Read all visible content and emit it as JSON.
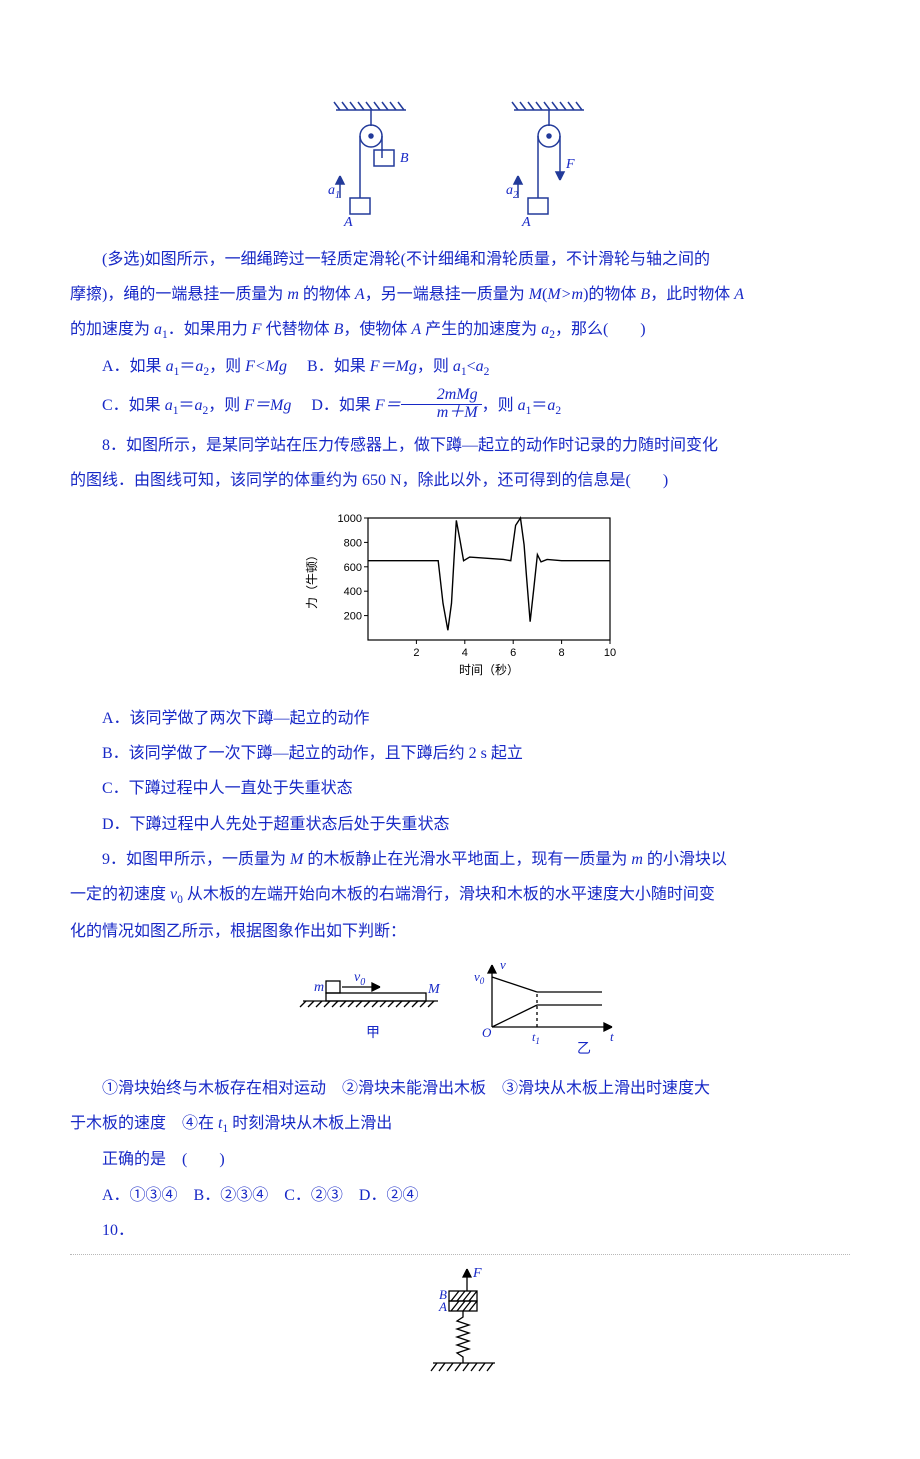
{
  "colors": {
    "ink": "#1728c6",
    "figure_stroke": "#223a9a",
    "figure_stroke2": "#000000",
    "chart_axis": "#000000",
    "chart_line": "#000000",
    "sep": "#b8b8b8",
    "bg": "#ffffff"
  },
  "typography": {
    "body_fontsize_pt": 12,
    "line_height": 2.2,
    "font_family": "SimSun / STSong",
    "italic_family": "Times New Roman"
  },
  "fig7": {
    "left": {
      "a_arrow_label": "a",
      "a_sub": "1",
      "block_A": "A",
      "block_B": "B"
    },
    "right": {
      "a_arrow_label": "a",
      "a_sub": "2",
      "block_A": "A",
      "force_label": "F"
    },
    "pulley_radius": 10,
    "hatch_width": 70
  },
  "q7": {
    "intro1": "(多选)如图所示，一细绳跨过一轻质定滑轮(不计细绳和滑轮质量，不计滑轮与轴之间的",
    "intro2": "摩擦)，绳的一端悬挂一质量为 ",
    "intro2_m": "m",
    "intro2b": " 的物体 ",
    "intro2_A": "A",
    "intro2c": "，另一端悬挂一质量为 ",
    "intro2_M": "M",
    "intro2_paren_open": "(",
    "intro2_rel": "M>m",
    "intro2_paren_close": ")",
    "intro2d": "的物体 ",
    "intro2_B": "B",
    "intro2e": "，此时物体 ",
    "intro2_A2": "A",
    "intro3a": "的加速度为 ",
    "intro3_a1": "a",
    "intro3_a1_sub": "1",
    "intro3b": "．如果用力 ",
    "intro3_F": "F",
    "intro3c": " 代替物体 ",
    "intro3_B": "B",
    "intro3d": "，使物体 ",
    "intro3_A": "A",
    "intro3e": " 产生的加速度为 ",
    "intro3_a2": "a",
    "intro3_a2_sub": "2",
    "intro3f": "，那么(　　)",
    "optA_pre": "A．如果 ",
    "optA_a1": "a",
    "optA_a1s": "1",
    "optA_eq": "＝",
    "optA_a2": "a",
    "optA_a2s": "2",
    "optA_mid": "，则 ",
    "optA_rel": "F<Mg",
    "optB_pre": "　B．如果 ",
    "optB_rel": "F＝Mg",
    "optB_mid": "，则 ",
    "optB_a1": "a",
    "optB_a1s": "1",
    "optB_lt": "<",
    "optB_a2": "a",
    "optB_a2s": "2",
    "optC_pre": "C．如果 ",
    "optC_a1": "a",
    "optC_a1s": "1",
    "optC_eq": "＝",
    "optC_a2": "a",
    "optC_a2s": "2",
    "optC_mid": "，则 ",
    "optC_rel": "F＝Mg",
    "optD_pre": "　D．如果 ",
    "optD_F": "F＝",
    "optD_num": "2mMg",
    "optD_den": "m＋M",
    "optD_mid": "，则 ",
    "optD_a1": "a",
    "optD_a1s": "1",
    "optD_eq": "＝",
    "optD_a2": "a",
    "optD_a2s": "2"
  },
  "q8": {
    "line1": "8．如图所示，是某同学站在压力传感器上，做下蹲—起立的动作时记录的力随时间变化",
    "line2": "的图线．由图线可知，该同学的体重约为 650 N，除此以外，还可得到的信息是(　　)",
    "chart": {
      "type": "line",
      "xlabel": "时间（秒）",
      "ylabel": "力（牛顿）",
      "xlim": [
        0,
        10
      ],
      "ylim": [
        0,
        1000
      ],
      "xtick_step": 2,
      "ytick_step": 200,
      "xticks": [
        2,
        4,
        6,
        8,
        10
      ],
      "yticks": [
        200,
        400,
        600,
        800,
        1000
      ],
      "axis_color": "#000000",
      "line_color": "#000000",
      "line_width": 1.4,
      "label_fontsize": 12,
      "tick_fontsize": 11,
      "background_color": "#ffffff",
      "data": [
        [
          0.0,
          650
        ],
        [
          2.9,
          650
        ],
        [
          3.1,
          300
        ],
        [
          3.3,
          80
        ],
        [
          3.45,
          300
        ],
        [
          3.55,
          650
        ],
        [
          3.65,
          980
        ],
        [
          3.8,
          820
        ],
        [
          3.95,
          650
        ],
        [
          4.2,
          680
        ],
        [
          5.6,
          660
        ],
        [
          5.9,
          650
        ],
        [
          6.1,
          940
        ],
        [
          6.3,
          1000
        ],
        [
          6.45,
          780
        ],
        [
          6.55,
          520
        ],
        [
          6.7,
          150
        ],
        [
          6.85,
          420
        ],
        [
          7.0,
          700
        ],
        [
          7.15,
          640
        ],
        [
          7.4,
          660
        ],
        [
          8.0,
          650
        ],
        [
          10.0,
          650
        ]
      ]
    },
    "optA": "A．该同学做了两次下蹲—起立的动作",
    "optB": "B．该同学做了一次下蹲—起立的动作，且下蹲后约 2 s 起立",
    "optC": "C．下蹲过程中人一直处于失重状态",
    "optD": "D．下蹲过程中人先处于超重状态后处于失重状态"
  },
  "q9": {
    "line1a": "9．如图甲所示，一质量为 ",
    "line1_M": "M",
    "line1b": " 的木板静止在光滑水平地面上，现有一质量为 ",
    "line1_m": "m",
    "line1c": " 的小滑块以",
    "line2a": "一定的初速度 ",
    "line2_v0": "v",
    "line2_v0s": "0",
    "line2b": " 从木板的左端开始向木板的右端滑行，滑块和木板的水平速度大小随时间变",
    "line3": "化的情况如图乙所示，根据图象作出如下判断：",
    "fig": {
      "left_label_m": "m",
      "left_label_v0": "v",
      "left_label_v0s": "0",
      "left_label_M": "M",
      "left_caption": "甲",
      "right_y": "v",
      "right_x": "t",
      "right_v0": "v",
      "right_v0s": "0",
      "right_o": "O",
      "right_t1": "t",
      "right_t1s": "1",
      "right_caption": "乙"
    },
    "line4a": "①滑块始终与木板存在相对运动　②滑块未能滑出木板　③滑块从木板上滑出时速度大",
    "line5a": "于木板的速度　④在 ",
    "line5_t1": "t",
    "line5_t1s": "1",
    "line5b": " 时刻滑块从木板上滑出",
    "line6": "正确的是　(　　)",
    "opts": "A．①③④　B．②③④　C．②③　D．②④"
  },
  "q10": {
    "num": "10．",
    "fig": {
      "F": "F",
      "B": "B",
      "A": "A"
    }
  }
}
